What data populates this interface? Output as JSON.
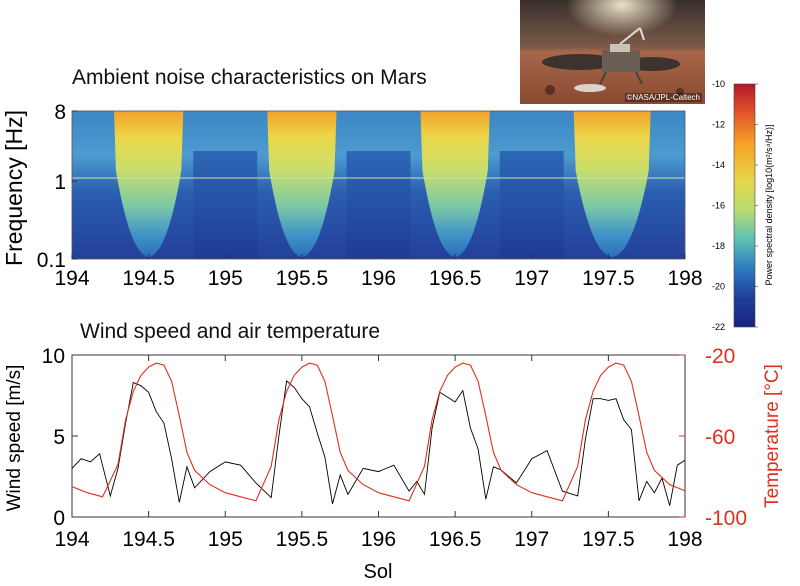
{
  "photo": {
    "credit": "©NASA/JPL-Caltech"
  },
  "chart_data": [
    {
      "type": "heatmap",
      "title": "Ambient noise characteristics on Mars",
      "xlabel": "",
      "ylabel": "Frequency [Hz]",
      "xlim": [
        194,
        198
      ],
      "ylim": [
        0.1,
        8
      ],
      "yscale": "log",
      "x_ticks": [
        "194",
        "194.5",
        "195",
        "195.5",
        "196",
        "196.5",
        "197",
        "197.5",
        "198"
      ],
      "y_ticks": [
        "0.1",
        "1",
        "8"
      ],
      "y_tick_values": [
        0.1,
        1,
        8
      ],
      "high_noise_windows": [
        [
          194.3,
          194.7
        ],
        [
          195.3,
          195.7
        ],
        [
          196.3,
          196.7
        ],
        [
          197.3,
          197.75
        ]
      ],
      "colorbar": {
        "label": "Power spectral density [log10(m²/s⁴/Hz)]",
        "range": [
          -22,
          -10
        ],
        "ticks": [
          "-10",
          "-12",
          "-14",
          "-16",
          "-18",
          "-20",
          "-22"
        ],
        "colors": [
          "#b2182b",
          "#e4542c",
          "#f5a623",
          "#e6d64a",
          "#b8dc72",
          "#5cc0b4",
          "#2c7bbf",
          "#1f3f99",
          "#1a237e"
        ]
      }
    },
    {
      "type": "line",
      "title": "Wind speed and air temperature",
      "xlabel": "Sol",
      "ylabel": "Wind speed [m/s]",
      "y2label": "Temperature [°C]",
      "xlim": [
        194,
        198
      ],
      "ylim": [
        0,
        10
      ],
      "y2lim": [
        -100,
        -20
      ],
      "x_ticks": [
        "194",
        "194.5",
        "195",
        "195.5",
        "196",
        "196.5",
        "197",
        "197.5",
        "198"
      ],
      "y_ticks": [
        "0",
        "5",
        "10"
      ],
      "y2_ticks": [
        "-20",
        "-60",
        "-100"
      ],
      "series": [
        {
          "name": "Wind speed",
          "color": "#000000",
          "axis": "left",
          "x": [
            194.0,
            194.06,
            194.12,
            194.18,
            194.25,
            194.3,
            194.35,
            194.4,
            194.45,
            194.5,
            194.55,
            194.6,
            194.65,
            194.7,
            194.75,
            194.8,
            194.9,
            195.0,
            195.1,
            195.2,
            195.3,
            195.35,
            195.4,
            195.45,
            195.5,
            195.55,
            195.6,
            195.65,
            195.7,
            195.75,
            195.8,
            195.9,
            196.0,
            196.1,
            196.2,
            196.25,
            196.3,
            196.35,
            196.4,
            196.45,
            196.5,
            196.55,
            196.6,
            196.65,
            196.7,
            196.75,
            196.8,
            196.9,
            197.0,
            197.1,
            197.2,
            197.3,
            197.35,
            197.4,
            197.45,
            197.5,
            197.55,
            197.6,
            197.65,
            197.7,
            197.75,
            197.8,
            197.85,
            197.9,
            197.95,
            198.0
          ],
          "y": [
            3.0,
            3.6,
            3.4,
            3.9,
            1.3,
            3.0,
            5.8,
            8.3,
            8.1,
            7.7,
            6.5,
            5.8,
            3.6,
            0.9,
            3.1,
            1.8,
            2.8,
            3.4,
            3.2,
            2.1,
            1.2,
            5.0,
            8.4,
            8.0,
            7.3,
            6.8,
            5.2,
            3.7,
            0.8,
            2.6,
            1.4,
            3.0,
            2.8,
            3.2,
            1.6,
            2.2,
            1.4,
            5.5,
            7.7,
            7.4,
            7.1,
            7.8,
            5.5,
            4.2,
            1.1,
            3.1,
            2.9,
            2.1,
            3.6,
            4.1,
            1.6,
            1.3,
            4.8,
            7.3,
            7.3,
            7.2,
            7.3,
            6.0,
            5.4,
            1.0,
            2.2,
            1.5,
            2.4,
            0.7,
            3.2,
            3.5
          ]
        },
        {
          "name": "Temperature",
          "color": "#e0301e",
          "axis": "right",
          "x": [
            194.0,
            194.1,
            194.2,
            194.3,
            194.35,
            194.4,
            194.45,
            194.5,
            194.55,
            194.6,
            194.65,
            194.7,
            194.75,
            194.8,
            194.9,
            195.0,
            195.1,
            195.2,
            195.3,
            195.35,
            195.4,
            195.45,
            195.5,
            195.55,
            195.6,
            195.65,
            195.7,
            195.75,
            195.8,
            195.9,
            196.0,
            196.1,
            196.2,
            196.3,
            196.35,
            196.4,
            196.45,
            196.5,
            196.55,
            196.6,
            196.65,
            196.7,
            196.75,
            196.8,
            196.9,
            197.0,
            197.1,
            197.2,
            197.3,
            197.35,
            197.4,
            197.45,
            197.5,
            197.55,
            197.6,
            197.65,
            197.7,
            197.75,
            197.8,
            197.9,
            198.0
          ],
          "y": [
            -85,
            -88,
            -90,
            -74,
            -52,
            -38,
            -30,
            -26,
            -24,
            -25,
            -33,
            -50,
            -68,
            -77,
            -84,
            -88,
            -90,
            -92,
            -75,
            -52,
            -38,
            -30,
            -26,
            -24,
            -25,
            -33,
            -50,
            -68,
            -77,
            -84,
            -88,
            -90,
            -92,
            -75,
            -52,
            -38,
            -30,
            -26,
            -24,
            -25,
            -33,
            -50,
            -68,
            -77,
            -84,
            -88,
            -90,
            -92,
            -75,
            -52,
            -38,
            -30,
            -26,
            -24,
            -25,
            -33,
            -50,
            -68,
            -77,
            -84,
            -87
          ]
        }
      ]
    }
  ]
}
